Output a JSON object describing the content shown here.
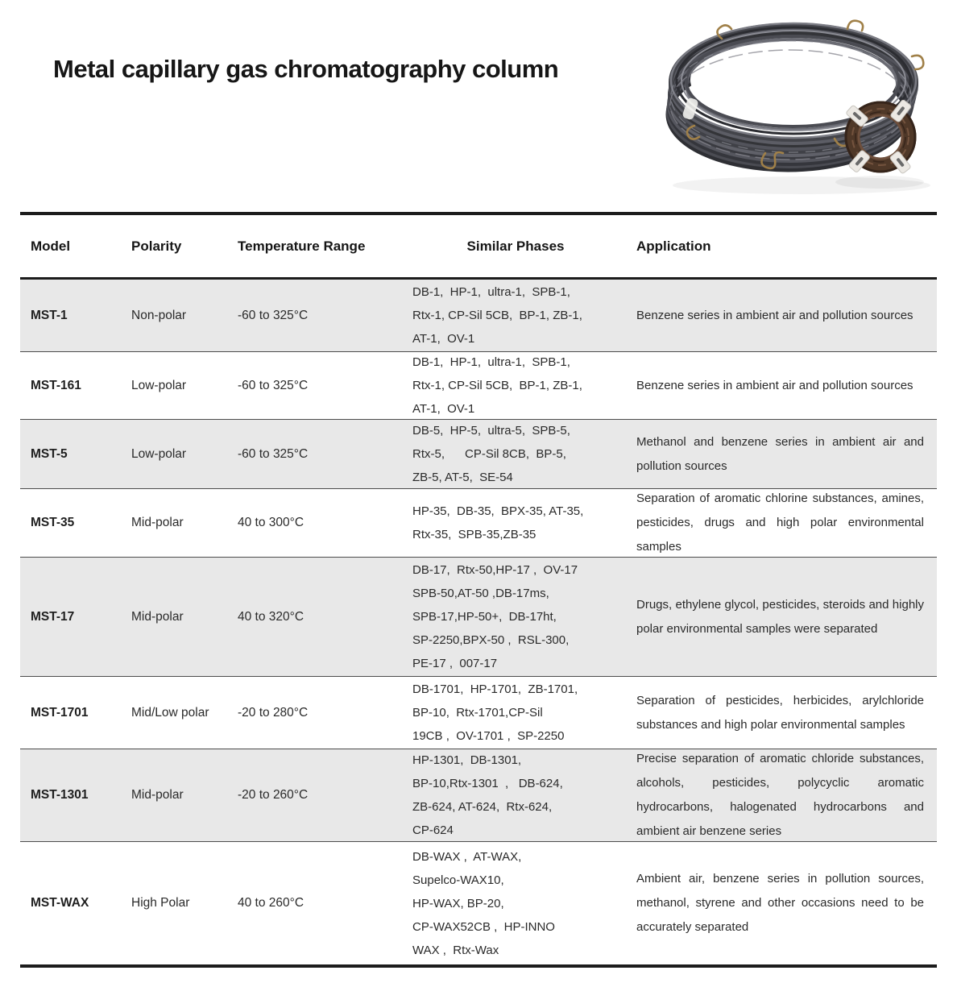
{
  "header": {
    "title": "Metal capillary gas chromatography column"
  },
  "product_photo": {
    "icon": "coiled-metal-capillary-columns-photo",
    "large_coil_color": "#45464d",
    "small_coil_color": "#4f3828",
    "clip_color": "#ece9e4"
  },
  "colors": {
    "row_shade": "#e8e8e8",
    "rule_heavy": "#1c1c1c",
    "rule_light": "#4c4c4c"
  },
  "table": {
    "columns": [
      "Model",
      "Polarity",
      "Temperature Range",
      "Similar Phases",
      "Application"
    ],
    "rows": [
      {
        "model": "MST-1",
        "polarity": "Non-polar",
        "temperature_range": "-60 to 325°C",
        "similar_phases": [
          "DB-1,  HP-1,  ultra-1,  SPB-1,",
          "Rtx-1, CP-Sil 5CB,  BP-1, ZB-1,",
          "AT-1,  OV-1"
        ],
        "application": "Benzene series in ambient air and pollution sources"
      },
      {
        "model": "MST-161",
        "polarity": "Low-polar",
        "temperature_range": "-60 to 325°C",
        "similar_phases": [
          "DB-1,  HP-1,  ultra-1,  SPB-1,",
          "Rtx-1, CP-Sil 5CB,  BP-1, ZB-1,",
          "AT-1,  OV-1"
        ],
        "application": "Benzene series in ambient air and pollution sources"
      },
      {
        "model": "MST-5",
        "polarity": "Low-polar",
        "temperature_range": "-60 to 325°C",
        "similar_phases": [
          "DB-5,  HP-5,  ultra-5,  SPB-5,",
          "Rtx-5,      CP-Sil 8CB,  BP-5,",
          "ZB-5, AT-5,  SE-54"
        ],
        "application": "Methanol and benzene series in ambient air and pollution sources"
      },
      {
        "model": "MST-35",
        "polarity": "Mid-polar",
        "temperature_range": "40 to 300°C",
        "similar_phases": [
          "HP-35,  DB-35,  BPX-35, AT-35,",
          "Rtx-35,  SPB-35,ZB-35"
        ],
        "application": "Separation of aromatic chlorine substances, amines, pesticides, drugs and high polar environmental samples"
      },
      {
        "model": "MST-17",
        "polarity": "Mid-polar",
        "temperature_range": "40 to 320°C",
        "similar_phases": [
          "DB-17,  Rtx-50,HP-17 ,  OV-17",
          "SPB-50,AT-50 ,DB-17ms,",
          "SPB-17,HP-50+,  DB-17ht,",
          "SP-2250,BPX-50 ,  RSL-300,",
          "PE-17 ,  007-17"
        ],
        "application": "Drugs, ethylene glycol, pesticides, steroids and highly polar environmental samples were separated"
      },
      {
        "model": "MST-1701",
        "polarity": "Mid/Low polar",
        "temperature_range": "-20 to 280°C",
        "similar_phases": [
          "DB-1701,  HP-1701,  ZB-1701,",
          "BP-10,  Rtx-1701,CP-Sil",
          "19CB ,  OV-1701 ,  SP-2250"
        ],
        "application": "Separation of pesticides, herbicides, arylchloride substances and high polar environmental samples"
      },
      {
        "model": "MST-1301",
        "polarity": "Mid-polar",
        "temperature_range": "-20 to 260°C",
        "similar_phases": [
          "HP-1301,  DB-1301,",
          "BP-10,Rtx-1301  ,   DB-624,",
          "ZB-624, AT-624,  Rtx-624,",
          "CP-624"
        ],
        "application": "Precise separation of aromatic chloride substances, alcohols, pesticides, polycyclic aromatic hydrocarbons, halogenated hydrocarbons and ambient air benzene series"
      },
      {
        "model": "MST-WAX",
        "polarity": "High Polar",
        "temperature_range": "40 to 260°C",
        "similar_phases": [
          "DB-WAX ,  AT-WAX,",
          "Supelco-WAX10,",
          "HP-WAX, BP-20,",
          "CP-WAX52CB ,  HP-INNO",
          "WAX ,  Rtx-Wax"
        ],
        "application": "Ambient air, benzene series in pollution sources, methanol, styrene and other occasions need to be accurately separated"
      }
    ]
  }
}
